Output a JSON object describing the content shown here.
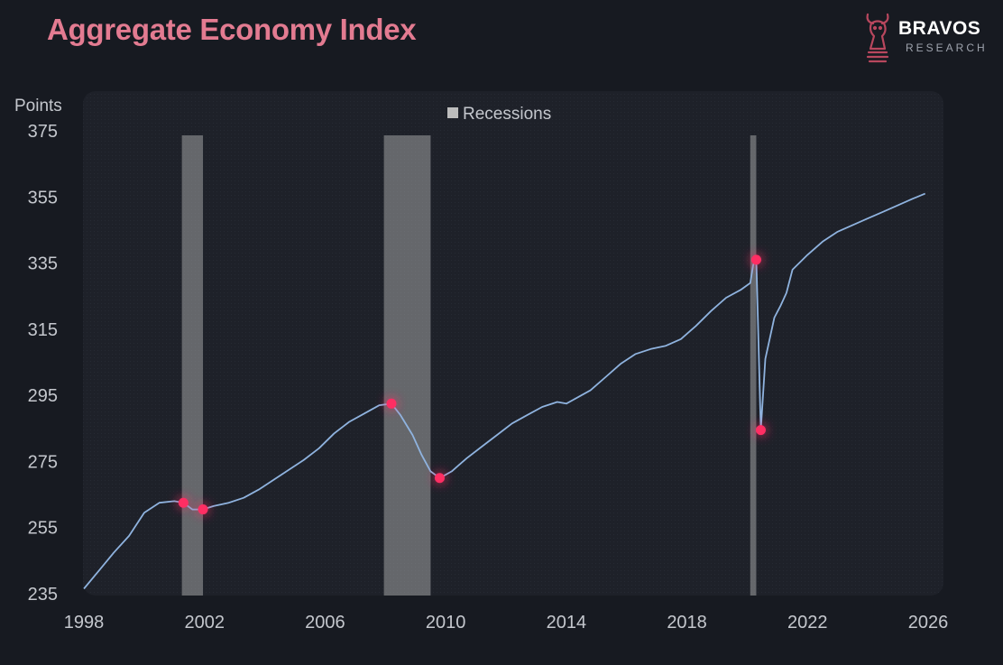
{
  "header": {
    "title": "Aggregate Economy Index"
  },
  "brand": {
    "name": "BRAVOS",
    "sub": "RESEARCH",
    "logo_icon": "bull-chess-knight-icon",
    "logo_color": "#b8475e"
  },
  "colors": {
    "title": "#e37b91",
    "line": "#8fb3df",
    "marker": "#ff2d63",
    "recession": "#bdbdbd"
  },
  "chart_data": {
    "type": "line",
    "title": "Aggregate Economy Index",
    "ylabel": "Points",
    "xlabel": "",
    "ylim": [
      235,
      375
    ],
    "xlim": [
      1998,
      2026
    ],
    "yticks": [
      "375",
      "355",
      "335",
      "315",
      "295",
      "275",
      "255",
      "235"
    ],
    "xticks": [
      "1998",
      "2002",
      "2006",
      "2010",
      "2014",
      "2018",
      "2022",
      "2026"
    ],
    "legend": {
      "label": "Recessions",
      "position": "top-center"
    },
    "recessions": [
      {
        "start": 2001.25,
        "end": 2001.95
      },
      {
        "start": 2007.95,
        "end": 2009.5
      },
      {
        "start": 2020.1,
        "end": 2020.3
      }
    ],
    "series": [
      {
        "name": "Aggregate Economy Index",
        "x": [
          1998.0,
          1998.5,
          1999.0,
          1999.5,
          2000.0,
          2000.5,
          2001.0,
          2001.3,
          2001.6,
          2001.95,
          2002.3,
          2002.8,
          2003.3,
          2003.8,
          2004.3,
          2004.8,
          2005.3,
          2005.8,
          2006.3,
          2006.8,
          2007.3,
          2007.8,
          2008.2,
          2008.5,
          2008.9,
          2009.2,
          2009.5,
          2009.8,
          2010.2,
          2010.7,
          2011.2,
          2011.7,
          2012.2,
          2012.7,
          2013.2,
          2013.7,
          2014.0,
          2014.3,
          2014.8,
          2015.3,
          2015.8,
          2016.3,
          2016.8,
          2017.3,
          2017.8,
          2018.3,
          2018.8,
          2019.3,
          2019.8,
          2020.1,
          2020.2,
          2020.3,
          2020.45,
          2020.6,
          2020.9,
          2021.1,
          2021.3,
          2021.5,
          2022.0,
          2022.5,
          2023.0,
          2023.5,
          2024.0,
          2024.5,
          2025.0,
          2025.5,
          2025.9
        ],
        "y": [
          236.5,
          242,
          247.5,
          252.5,
          259.5,
          262.5,
          263,
          262.5,
          260.5,
          260.5,
          261.5,
          262.5,
          264,
          266.5,
          269.5,
          272.5,
          275.5,
          279,
          283.5,
          287,
          289.5,
          292,
          292.5,
          289,
          283,
          277,
          272,
          270,
          272,
          276,
          279.5,
          283,
          286.5,
          289,
          291.5,
          293,
          292.5,
          294,
          296.5,
          300.5,
          304.5,
          307.5,
          309,
          310,
          312,
          316,
          320.5,
          324.5,
          327,
          329,
          334.5,
          336,
          284.5,
          306,
          318.5,
          322,
          326,
          333,
          337.5,
          341.5,
          344.5,
          346.5,
          348.5,
          350.5,
          352.5,
          354.5,
          356
        ]
      }
    ],
    "markers": [
      {
        "x": 2001.3,
        "y": 262.5
      },
      {
        "x": 2001.95,
        "y": 260.5
      },
      {
        "x": 2008.2,
        "y": 292.5
      },
      {
        "x": 2009.8,
        "y": 270
      },
      {
        "x": 2020.3,
        "y": 336
      },
      {
        "x": 2020.45,
        "y": 284.5
      }
    ]
  }
}
